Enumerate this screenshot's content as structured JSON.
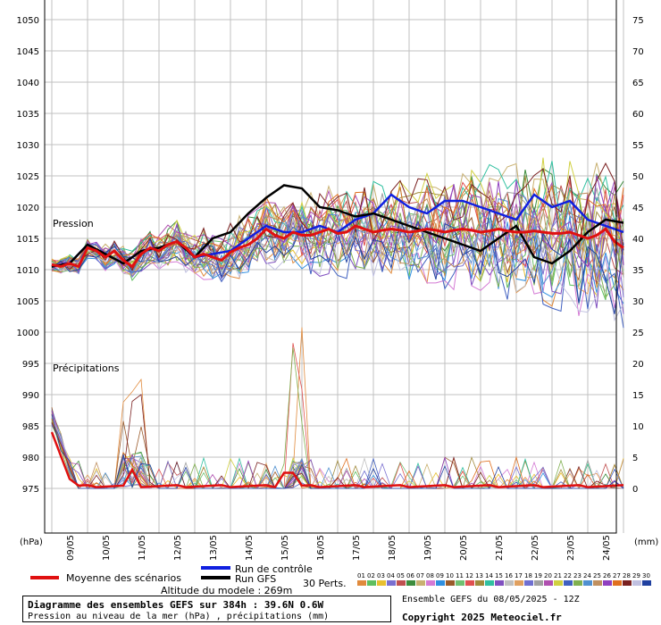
{
  "chart_data": {
    "type": "line",
    "title": "Diagramme des ensembles GEFS sur 384h : 39.6N 0.6W",
    "subtitle": "Pression au niveau de la mer (hPa) , précipitations (mm)",
    "left_axis": {
      "unit": "(hPa)",
      "ticks": [
        1050,
        1045,
        1040,
        1035,
        1030,
        1025,
        1020,
        1015,
        1010,
        1005,
        1000,
        995,
        990,
        985,
        980,
        975
      ],
      "range": [
        970,
        1051
      ]
    },
    "right_axis": {
      "unit": "(mm)",
      "ticks": [
        75,
        70,
        65,
        60,
        55,
        50,
        45,
        40,
        35,
        30,
        25,
        20,
        15,
        10,
        5,
        0
      ],
      "range": [
        -5,
        76
      ]
    },
    "x_labels": [
      "09/05",
      "10/05",
      "11/05",
      "12/05",
      "13/05",
      "14/05",
      "15/05",
      "16/05",
      "17/05",
      "18/05",
      "19/05",
      "20/05",
      "21/05",
      "22/05",
      "23/05",
      "24/05"
    ],
    "pressure_label": "Pression",
    "precip_label": "Précipitations",
    "legend": {
      "mean": "Moyenne des scénarios",
      "control": "Run de contrôle",
      "gfs": "Run GFS",
      "altitude": "Altitude du modele : 269m",
      "perts_label": "30 Perts.",
      "perts_numbers": [
        "01",
        "02",
        "03",
        "04",
        "05",
        "06",
        "07",
        "08",
        "09",
        "10",
        "11",
        "12",
        "13",
        "14",
        "15",
        "16",
        "17",
        "18",
        "19",
        "20",
        "21",
        "22",
        "23",
        "24",
        "25",
        "26",
        "27",
        "28",
        "29",
        "30"
      ],
      "perts_colors": [
        "#e08a3c",
        "#5fbf5f",
        "#e8c030",
        "#7a6fd0",
        "#c05050",
        "#3c8c3c",
        "#c8b070",
        "#d47ad4",
        "#2f8fe0",
        "#9a5a2a",
        "#70c070",
        "#e05050",
        "#a08a3c",
        "#30c0a0",
        "#8050c0",
        "#c0c0c0",
        "#e0a060",
        "#6f6fd0",
        "#a0a0a0",
        "#b050b0",
        "#d0d040",
        "#4060c0",
        "#80b050",
        "#5090d0",
        "#c09060",
        "#9040c0",
        "#e07020",
        "#7a2020",
        "#c0c0e0",
        "#2040a0"
      ]
    },
    "colors": {
      "mean": "#e01010",
      "control": "#1020e0",
      "gfs": "#000000",
      "grid": "#c0c0c0"
    },
    "series": [
      {
        "name": "Moyenne des scénarios",
        "axis": "pressure",
        "x_day": [
          0,
          0.25,
          0.5,
          0.75,
          1,
          1.25,
          1.5,
          1.75,
          2,
          2.25,
          2.5,
          2.75,
          3,
          3.25,
          3.5,
          3.75,
          4,
          4.25,
          4.5,
          4.75,
          5,
          5.25,
          5.5,
          5.75,
          6,
          6.25,
          6.5,
          6.75,
          7,
          7.25,
          7.5,
          7.75,
          8,
          8.25,
          8.5,
          8.75,
          9,
          9.25,
          9.5,
          9.75,
          10,
          10.25,
          10.5,
          10.75,
          11,
          11.25,
          11.5,
          11.75,
          12,
          12.25,
          12.5,
          12.75,
          13,
          13.25,
          13.5,
          13.75,
          14,
          14.25,
          14.5,
          14.75,
          15,
          15.25,
          15.5,
          15.75,
          16
        ],
        "values": [
          1010.8,
          1010.5,
          1011,
          1010.5,
          1013.5,
          1013,
          1012,
          1013,
          1011.5,
          1010.5,
          1012.5,
          1013.5,
          1013,
          1014,
          1014.5,
          1013.5,
          1012,
          1012.5,
          1012,
          1011.5,
          1012.8,
          1013.5,
          1014,
          1015,
          1016.5,
          1015.5,
          1015,
          1016,
          1015.5,
          1015.5,
          1016,
          1016.5,
          1015.8,
          1016,
          1017,
          1016.5,
          1016,
          1016.3,
          1016.5,
          1016.3,
          1016,
          1016.2,
          1016.5,
          1016.3,
          1016,
          1016.3,
          1016.5,
          1016.3,
          1016,
          1016.2,
          1016.5,
          1016.2,
          1016,
          1016,
          1016.2,
          1016,
          1015.8,
          1015.8,
          1016,
          1015.5,
          1015,
          1015.5,
          1016.5,
          1014.5,
          1013.5
        ]
      },
      {
        "name": "Run de contrôle",
        "axis": "pressure",
        "x_day": [
          0,
          0.5,
          1,
          1.5,
          2,
          2.5,
          3,
          3.5,
          4,
          4.5,
          5,
          5.5,
          6,
          6.5,
          7,
          7.5,
          8,
          8.5,
          9,
          9.5,
          10,
          10.5,
          11,
          11.5,
          12,
          12.5,
          13,
          13.5,
          14,
          14.5,
          15,
          15.5,
          16
        ],
        "values": [
          1010.5,
          1011,
          1014,
          1012.5,
          1011,
          1013,
          1013.5,
          1014.5,
          1012,
          1012.5,
          1013,
          1015,
          1017,
          1016,
          1016,
          1017,
          1016,
          1018,
          1019,
          1022,
          1020,
          1019,
          1021,
          1021,
          1020,
          1019,
          1018,
          1022,
          1020,
          1021,
          1018,
          1017,
          1016
        ]
      },
      {
        "name": "Run GFS",
        "axis": "pressure",
        "x_day": [
          0,
          0.5,
          1,
          1.5,
          2,
          2.5,
          3,
          3.5,
          4,
          4.5,
          5,
          5.5,
          6,
          6.5,
          7,
          7.5,
          8,
          8.5,
          9,
          9.5,
          10,
          10.5,
          11,
          11.5,
          12,
          12.5,
          13,
          13.5,
          14,
          14.5,
          15,
          15.5,
          16
        ],
        "values": [
          1010.5,
          1011,
          1014,
          1012.5,
          1011,
          1013,
          1013.5,
          1014.5,
          1012,
          1015,
          1016,
          1019,
          1021.5,
          1023.5,
          1023,
          1020,
          1019.5,
          1018.5,
          1019,
          1018,
          1017,
          1016,
          1015,
          1014,
          1013,
          1015,
          1017,
          1012,
          1011,
          1013,
          1016,
          1018,
          1017.5
        ]
      }
    ]
  }
}
